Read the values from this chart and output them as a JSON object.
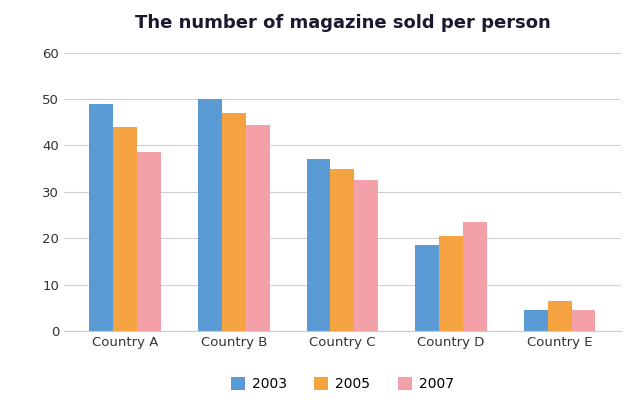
{
  "title": "The number of magazine sold per person",
  "categories": [
    "Country A",
    "Country B",
    "Country C",
    "Country D",
    "Country E"
  ],
  "years": [
    "2003",
    "2005",
    "2007"
  ],
  "values": {
    "2003": [
      49,
      50,
      37,
      18.5,
      4.5
    ],
    "2005": [
      44,
      47,
      35,
      20.5,
      6.5
    ],
    "2007": [
      38.5,
      44.5,
      32.5,
      23.5,
      4.5
    ]
  },
  "colors": {
    "2003": "#5B9BD5",
    "2005": "#F4A340",
    "2007": "#F4A0A8"
  },
  "ylim": [
    0,
    60
  ],
  "yticks": [
    0,
    10,
    20,
    30,
    40,
    50,
    60
  ],
  "bar_width": 0.22,
  "title_fontsize": 13,
  "tick_fontsize": 9.5,
  "legend_fontsize": 10,
  "background_color": "#ffffff",
  "grid_color": "#d0d0d0"
}
